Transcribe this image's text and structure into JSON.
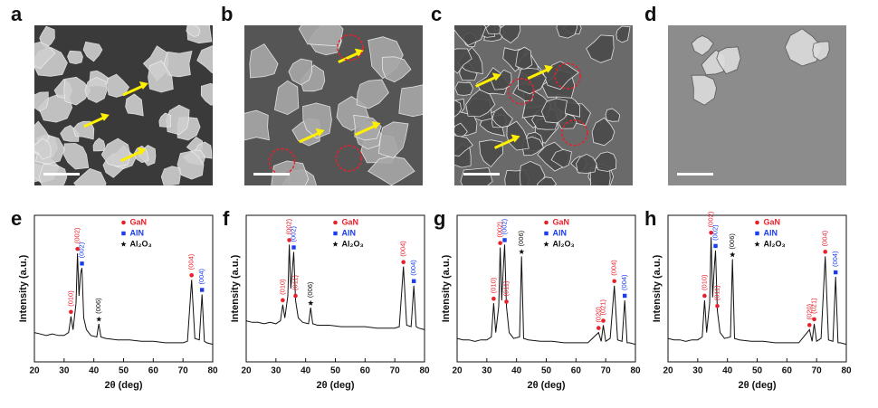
{
  "images": [
    {
      "panel": "a"
    },
    {
      "panel": "b"
    },
    {
      "panel": "c"
    },
    {
      "panel": "d"
    }
  ],
  "chart_data": [
    {
      "type": "line",
      "panel": "e",
      "x_label": "2θ (deg)",
      "y_label": "Intensity (a.u.)",
      "xlim": [
        20,
        80
      ],
      "xticks": [
        20,
        30,
        40,
        50,
        60,
        70,
        80
      ],
      "ylim": [
        0,
        100
      ],
      "legend_position": "top-center",
      "legend": [
        {
          "name": "GaN",
          "color": "#e8202a",
          "marker": "circle"
        },
        {
          "name": "AlN",
          "color": "#1c3cf0",
          "marker": "square"
        },
        {
          "name": "Al₂O₃",
          "color": "#111111",
          "marker": "star"
        }
      ],
      "x": [
        20,
        22,
        24,
        26,
        28,
        30,
        31.5,
        32.3,
        33,
        34,
        34.5,
        35,
        35.5,
        36,
        36.6,
        37.5,
        39,
        41,
        41.7,
        42.4,
        44,
        48,
        52,
        56,
        60,
        64,
        67.6,
        68.5,
        69.2,
        70,
        71.5,
        72.9,
        74,
        75.5,
        76.4,
        77.2,
        78,
        80
      ],
      "series": [
        {
          "color": "#111111",
          "values": [
            20,
            19,
            18,
            19,
            18,
            18,
            20,
            31,
            22,
            40,
            74,
            45,
            60,
            64,
            30,
            22,
            18,
            17,
            26,
            17,
            16,
            15,
            15,
            14,
            14,
            13,
            13,
            13,
            13,
            13,
            14,
            56,
            16,
            15,
            46,
            14,
            13,
            12
          ]
        }
      ],
      "annotations": [
        {
          "x": 32.3,
          "label": "(010)",
          "color": "#e8202a",
          "marker": "circle"
        },
        {
          "x": 34.5,
          "label": "(002)",
          "color": "#e8202a",
          "marker": "circle"
        },
        {
          "x": 36,
          "label": "(002)",
          "color": "#1c3cf0",
          "marker": "square"
        },
        {
          "x": 41.7,
          "label": "(006)",
          "color": "#111111",
          "marker": "star"
        },
        {
          "x": 72.9,
          "label": "(004)",
          "color": "#e8202a",
          "marker": "circle"
        },
        {
          "x": 76.4,
          "label": "(004)",
          "color": "#1c3cf0",
          "marker": "square"
        }
      ]
    },
    {
      "type": "line",
      "panel": "f",
      "x_label": "2θ (deg)",
      "y_label": "Intensity (a.u.)",
      "xlim": [
        20,
        80
      ],
      "xticks": [
        20,
        30,
        40,
        50,
        60,
        70,
        80
      ],
      "ylim": [
        0,
        100
      ],
      "legend_position": "top-center",
      "legend": [
        {
          "name": "GaN",
          "color": "#e8202a",
          "marker": "circle"
        },
        {
          "name": "AlN",
          "color": "#1c3cf0",
          "marker": "square"
        },
        {
          "name": "Al₂O₃",
          "color": "#111111",
          "marker": "star"
        }
      ],
      "x": [
        20,
        22,
        24,
        26,
        28,
        30,
        31.5,
        32.3,
        33,
        34,
        34.5,
        35,
        35.5,
        36,
        36.6,
        37.5,
        39,
        41,
        41.7,
        42.4,
        44,
        48,
        52,
        56,
        60,
        64,
        67.6,
        68.5,
        69.2,
        70,
        71.5,
        72.9,
        74,
        75.5,
        76.4,
        77.2,
        78,
        80
      ],
      "series": [
        {
          "color": "#111111",
          "values": [
            28,
            27,
            27,
            26,
            27,
            26,
            28,
            39,
            30,
            45,
            80,
            50,
            62,
            75,
            42,
            30,
            27,
            26,
            37,
            26,
            25,
            25,
            24,
            24,
            24,
            23,
            23,
            23,
            23,
            23,
            24,
            65,
            25,
            24,
            52,
            24,
            23,
            22
          ]
        }
      ],
      "annotations": [
        {
          "x": 32.3,
          "label": "(010)",
          "color": "#e8202a",
          "marker": "circle"
        },
        {
          "x": 34.5,
          "label": "(002)",
          "color": "#e8202a",
          "marker": "circle"
        },
        {
          "x": 36,
          "label": "(002)",
          "color": "#1c3cf0",
          "marker": "square"
        },
        {
          "x": 36.6,
          "label": "(011)",
          "color": "#e8202a",
          "marker": "circle"
        },
        {
          "x": 41.7,
          "label": "(006)",
          "color": "#111111",
          "marker": "star"
        },
        {
          "x": 72.9,
          "label": "(004)",
          "color": "#e8202a",
          "marker": "circle"
        },
        {
          "x": 76.4,
          "label": "(004)",
          "color": "#1c3cf0",
          "marker": "square"
        }
      ]
    },
    {
      "type": "line",
      "panel": "g",
      "x_label": "2θ (deg)",
      "y_label": "Intensity (a.u.)",
      "xlim": [
        20,
        80
      ],
      "xticks": [
        20,
        30,
        40,
        50,
        60,
        70,
        80
      ],
      "ylim": [
        0,
        100
      ],
      "legend_position": "top-center",
      "legend": [
        {
          "name": "GaN",
          "color": "#e8202a",
          "marker": "circle"
        },
        {
          "name": "AlN",
          "color": "#1c3cf0",
          "marker": "square"
        },
        {
          "name": "Al₂O₃",
          "color": "#111111",
          "marker": "star"
        }
      ],
      "x": [
        20,
        22,
        24,
        26,
        28,
        30,
        31.5,
        32.3,
        33,
        34,
        34.5,
        35,
        35.5,
        36,
        36.6,
        37.5,
        39,
        41,
        41.7,
        42.4,
        44,
        48,
        52,
        56,
        60,
        64,
        67.6,
        68.5,
        69.2,
        70,
        71.5,
        72.9,
        74,
        75.5,
        76.4,
        77.2,
        78,
        80
      ],
      "series": [
        {
          "color": "#111111",
          "values": [
            16,
            15,
            15,
            14,
            15,
            15,
            17,
            40,
            20,
            38,
            78,
            42,
            62,
            80,
            38,
            20,
            16,
            17,
            72,
            16,
            15,
            14,
            14,
            13,
            13,
            13,
            20,
            14,
            25,
            14,
            16,
            52,
            15,
            14,
            42,
            13,
            13,
            12
          ]
        }
      ],
      "annotations": [
        {
          "x": 32.3,
          "label": "(010)",
          "color": "#e8202a",
          "marker": "circle"
        },
        {
          "x": 34.5,
          "label": "(002)",
          "color": "#e8202a",
          "marker": "circle"
        },
        {
          "x": 36,
          "label": "(002)",
          "color": "#1c3cf0",
          "marker": "square"
        },
        {
          "x": 36.6,
          "label": "(011)",
          "color": "#e8202a",
          "marker": "circle"
        },
        {
          "x": 41.7,
          "label": "(006)",
          "color": "#111111",
          "marker": "star"
        },
        {
          "x": 67.6,
          "label": "(020)",
          "color": "#e8202a",
          "marker": "circle"
        },
        {
          "x": 69.2,
          "label": "(021)",
          "color": "#e8202a",
          "marker": "circle"
        },
        {
          "x": 72.9,
          "label": "(004)",
          "color": "#e8202a",
          "marker": "circle"
        },
        {
          "x": 76.4,
          "label": "(004)",
          "color": "#1c3cf0",
          "marker": "square"
        }
      ]
    },
    {
      "type": "line",
      "panel": "h",
      "x_label": "2θ (deg)",
      "y_label": "Intensity (a.u.)",
      "xlim": [
        20,
        80
      ],
      "xticks": [
        20,
        30,
        40,
        50,
        60,
        70,
        80
      ],
      "ylim": [
        0,
        100
      ],
      "legend_position": "top-center",
      "legend": [
        {
          "name": "GaN",
          "color": "#e8202a",
          "marker": "circle"
        },
        {
          "name": "AlN",
          "color": "#1c3cf0",
          "marker": "square"
        },
        {
          "name": "Al₂O₃",
          "color": "#111111",
          "marker": "star"
        }
      ],
      "x": [
        20,
        22,
        24,
        26,
        28,
        30,
        31.5,
        32.3,
        33,
        34,
        34.5,
        35,
        35.5,
        36,
        36.6,
        37.5,
        39,
        41,
        41.7,
        42.4,
        44,
        48,
        52,
        56,
        60,
        64,
        67.6,
        68.5,
        69.2,
        70,
        71.5,
        72.9,
        74,
        75.5,
        76.4,
        77.2,
        78,
        80
      ],
      "series": [
        {
          "color": "#111111",
          "values": [
            16,
            15,
            15,
            14,
            15,
            15,
            17,
            42,
            20,
            40,
            85,
            44,
            62,
            76,
            35,
            20,
            16,
            17,
            70,
            16,
            15,
            14,
            14,
            13,
            13,
            13,
            22,
            14,
            26,
            14,
            16,
            72,
            15,
            14,
            58,
            13,
            13,
            12
          ]
        }
      ],
      "annotations": [
        {
          "x": 32.3,
          "label": "(010)",
          "color": "#e8202a",
          "marker": "circle"
        },
        {
          "x": 34.5,
          "label": "(002)",
          "color": "#e8202a",
          "marker": "circle"
        },
        {
          "x": 36,
          "label": "(002)",
          "color": "#1c3cf0",
          "marker": "square"
        },
        {
          "x": 36.6,
          "label": "(011)",
          "color": "#e8202a",
          "marker": "circle"
        },
        {
          "x": 41.7,
          "label": "(006)",
          "color": "#111111",
          "marker": "star"
        },
        {
          "x": 67.6,
          "label": "(020)",
          "color": "#e8202a",
          "marker": "circle"
        },
        {
          "x": 69.2,
          "label": "(021)",
          "color": "#e8202a",
          "marker": "circle"
        },
        {
          "x": 72.9,
          "label": "(004)",
          "color": "#e8202a",
          "marker": "circle"
        },
        {
          "x": 76.4,
          "label": "(004)",
          "color": "#1c3cf0",
          "marker": "square"
        }
      ]
    }
  ]
}
